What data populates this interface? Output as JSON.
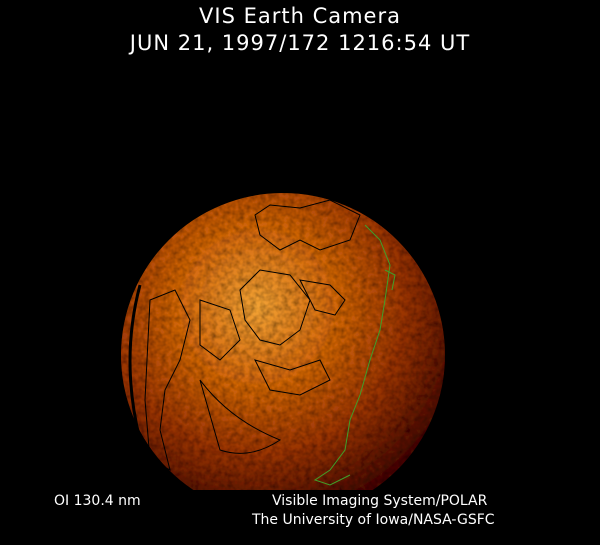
{
  "header": {
    "title": "VIS Earth Camera",
    "timestamp": "JUN 21, 1997/172 1216:54 UT"
  },
  "footer": {
    "wavelength": "OI  130.4 nm",
    "instrument": "Visible Imaging System/POLAR",
    "institution": "The University of Iowa/NASA-GSFC"
  },
  "colors": {
    "background": "#000000",
    "glow_bright": "#f0a030",
    "glow_dark": "#5a1400",
    "coastline_night": "#000000",
    "coastline_day": "#3fa02a"
  }
}
